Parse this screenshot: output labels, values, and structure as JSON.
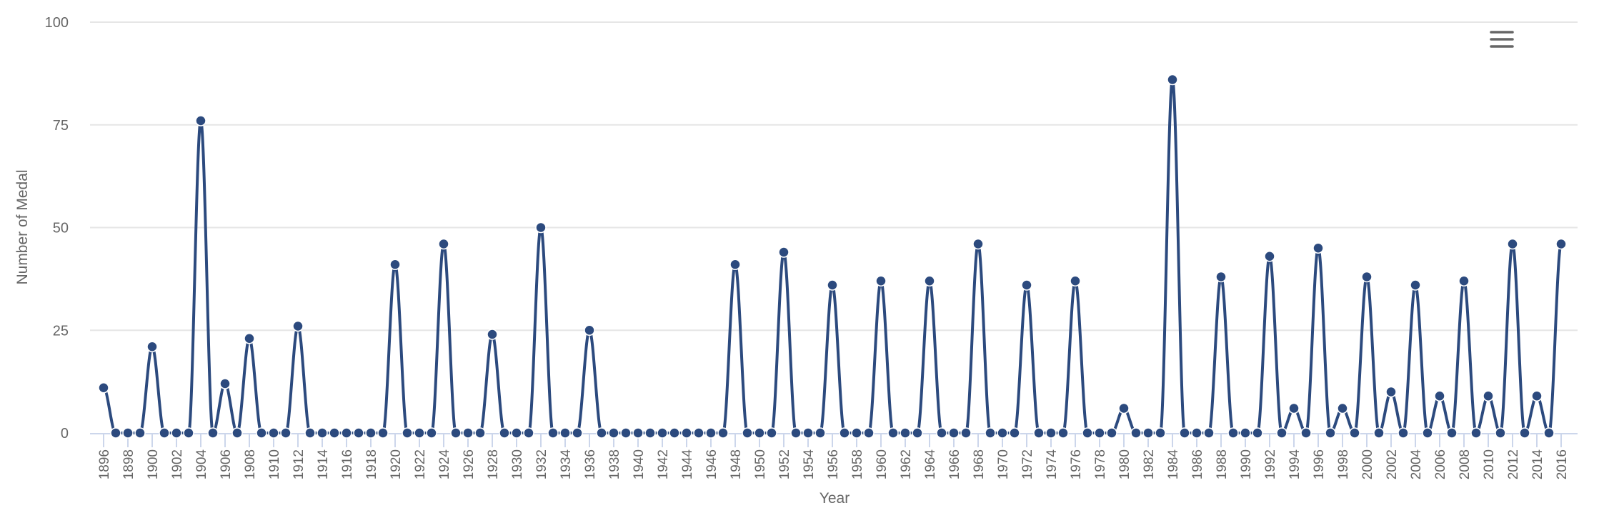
{
  "chart_data": {
    "type": "line",
    "title": "",
    "xlabel": "Year",
    "ylabel": "Number of Medal",
    "ylim": [
      0,
      100
    ],
    "y_ticks": [
      0,
      25,
      50,
      75,
      100
    ],
    "x_tick_labels": [
      "1896",
      "1898",
      "1900",
      "1902",
      "1904",
      "1906",
      "1908",
      "1910",
      "1912",
      "1914",
      "1916",
      "1918",
      "1920",
      "1922",
      "1924",
      "1926",
      "1928",
      "1930",
      "1932",
      "1934",
      "1936",
      "1938",
      "1940",
      "1942",
      "1944",
      "1946",
      "1948",
      "1950",
      "1952",
      "1954",
      "1956",
      "1958",
      "1960",
      "1962",
      "1964",
      "1966",
      "1968",
      "1970",
      "1972",
      "1974",
      "1976",
      "1978",
      "1980",
      "1982",
      "1984",
      "1986",
      "1988",
      "1990",
      "1992",
      "1994",
      "1996",
      "1998",
      "2000",
      "2002",
      "2004",
      "2006",
      "2008",
      "2010",
      "2012",
      "2014",
      "2016"
    ],
    "grid": true,
    "legend": "none",
    "color": "#2c4a7e",
    "x": [
      1896,
      1897,
      1898,
      1899,
      1900,
      1901,
      1902,
      1903,
      1904,
      1905,
      1906,
      1907,
      1908,
      1909,
      1910,
      1911,
      1912,
      1913,
      1914,
      1915,
      1916,
      1917,
      1918,
      1919,
      1920,
      1921,
      1922,
      1923,
      1924,
      1925,
      1926,
      1927,
      1928,
      1929,
      1930,
      1931,
      1932,
      1933,
      1934,
      1935,
      1936,
      1937,
      1938,
      1939,
      1940,
      1941,
      1942,
      1943,
      1944,
      1945,
      1946,
      1947,
      1948,
      1949,
      1950,
      1951,
      1952,
      1953,
      1954,
      1955,
      1956,
      1957,
      1958,
      1959,
      1960,
      1961,
      1962,
      1963,
      1964,
      1965,
      1966,
      1967,
      1968,
      1969,
      1970,
      1971,
      1972,
      1973,
      1974,
      1975,
      1976,
      1977,
      1978,
      1979,
      1980,
      1981,
      1982,
      1983,
      1984,
      1985,
      1986,
      1987,
      1988,
      1989,
      1990,
      1991,
      1992,
      1993,
      1994,
      1995,
      1996,
      1997,
      1998,
      1999,
      2000,
      2001,
      2002,
      2003,
      2004,
      2005,
      2006,
      2007,
      2008,
      2009,
      2010,
      2011,
      2012,
      2013,
      2014,
      2015,
      2016
    ],
    "series": [
      {
        "name": "Number of Medal",
        "values": [
          11,
          0,
          0,
          0,
          21,
          0,
          0,
          0,
          76,
          0,
          12,
          0,
          23,
          0,
          0,
          0,
          26,
          0,
          0,
          0,
          0,
          0,
          0,
          0,
          41,
          0,
          0,
          0,
          46,
          0,
          0,
          0,
          24,
          0,
          0,
          0,
          50,
          0,
          0,
          0,
          25,
          0,
          0,
          0,
          0,
          0,
          0,
          0,
          0,
          0,
          0,
          0,
          41,
          0,
          0,
          0,
          44,
          0,
          0,
          0,
          36,
          0,
          0,
          0,
          37,
          0,
          0,
          0,
          37,
          0,
          0,
          0,
          46,
          0,
          0,
          0,
          36,
          0,
          0,
          0,
          37,
          0,
          0,
          0,
          6,
          0,
          0,
          0,
          86,
          0,
          0,
          0,
          38,
          0,
          0,
          0,
          43,
          0,
          6,
          0,
          45,
          0,
          6,
          0,
          38,
          0,
          10,
          0,
          36,
          0,
          9,
          0,
          37,
          0,
          9,
          0,
          46,
          0,
          9,
          0,
          46
        ]
      }
    ]
  },
  "chart": {
    "menu_icon": "hamburger-menu-icon",
    "colors": {
      "series": "#2c4a7e",
      "grid": "#e6e6e6",
      "axis": "#ccd6eb",
      "text": "#666666"
    }
  }
}
